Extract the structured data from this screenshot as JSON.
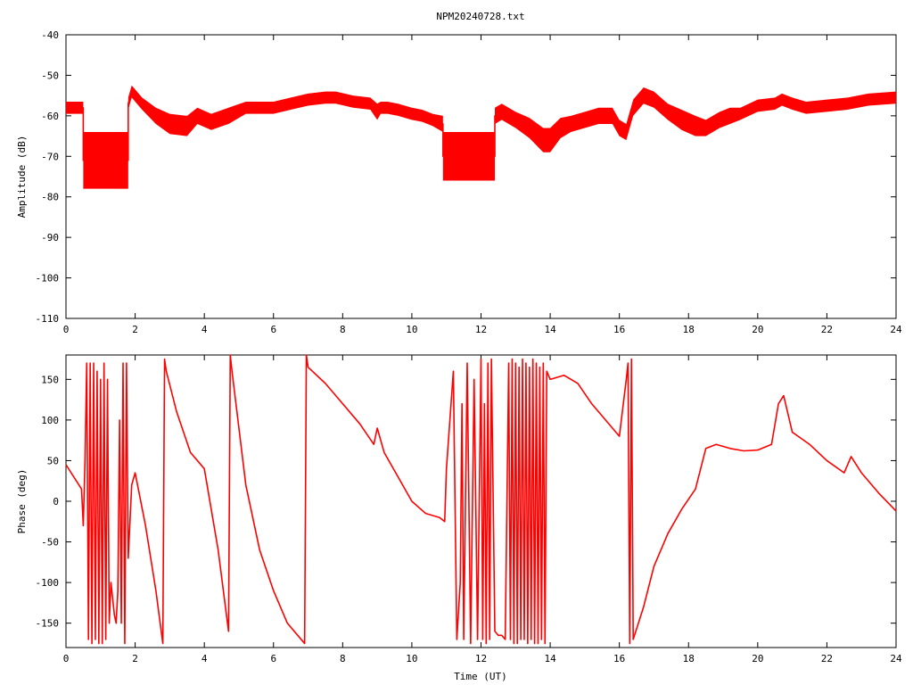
{
  "title": "NPM20240728.txt",
  "xlabel": "Time (UT)",
  "trace_color": "#ff0000",
  "chart_data": [
    {
      "type": "line",
      "ylabel": "Amplitude (dB)",
      "xlim": [
        0,
        24
      ],
      "ylim": [
        -110,
        -40
      ],
      "xticks": [
        0,
        2,
        4,
        6,
        8,
        10,
        12,
        14,
        16,
        18,
        20,
        22,
        24
      ],
      "yticks": [
        -40,
        -50,
        -60,
        -70,
        -80,
        -90,
        -100,
        -110
      ],
      "grid": false,
      "series": [
        {
          "x": [
            0,
            0.5,
            0.5,
            0.8,
            1.2,
            1.8,
            1.8,
            1.9,
            2.2,
            2.6,
            3.0,
            3.5,
            3.8,
            4.2,
            4.7,
            5.2,
            5.6,
            6.0,
            6.5,
            7.0,
            7.5,
            7.8,
            8.3,
            8.8,
            9.0,
            9.1,
            9.3,
            9.6,
            10.0,
            10.3,
            10.6,
            10.9,
            10.9,
            11.3,
            11.8,
            12.4,
            12.4,
            12.6,
            13.0,
            13.4,
            13.8,
            14.0,
            14.3,
            14.6,
            15.0,
            15.4,
            15.8,
            16.0,
            16.2,
            16.4,
            16.7,
            17.0,
            17.4,
            17.8,
            18.2,
            18.5,
            18.9,
            19.2,
            19.5,
            20.0,
            20.5,
            20.7,
            21.0,
            21.4,
            22.0,
            22.6,
            23.2,
            24.0
          ],
          "y": [
            -58,
            -58,
            -71,
            -71,
            -71,
            -71,
            -57,
            -54,
            -57,
            -60,
            -62,
            -62.5,
            -60,
            -61.5,
            -60,
            -58,
            -58,
            -58,
            -57,
            -56,
            -55.5,
            -55.5,
            -56.5,
            -57,
            -59,
            -58,
            -58,
            -58.5,
            -59.5,
            -60,
            -61,
            -62,
            -70,
            -70,
            -70,
            -70,
            -60,
            -59,
            -61,
            -63,
            -66,
            -66,
            -63,
            -62,
            -61,
            -60,
            -60,
            -63,
            -64,
            -58,
            -55,
            -56,
            -59,
            -61,
            -62.5,
            -63,
            -61,
            -60,
            -59.5,
            -57.5,
            -57,
            -56,
            -57,
            -58,
            -57.5,
            -57,
            -56,
            -55.5
          ],
          "band": [
            1.5,
            1.5,
            7,
            7,
            7,
            7,
            1.5,
            1.5,
            1.5,
            2,
            2.5,
            2.5,
            2,
            2,
            2,
            1.5,
            1.5,
            1.5,
            1.5,
            1.5,
            1.5,
            1.5,
            1.5,
            1.5,
            2,
            1.5,
            1.5,
            1.5,
            1.5,
            1.5,
            1.5,
            2,
            6,
            6,
            6,
            6,
            2,
            2,
            2,
            2.5,
            3,
            3,
            2.5,
            2,
            2,
            2,
            2,
            2,
            2,
            2,
            2,
            2,
            2,
            2.5,
            2.5,
            2,
            2,
            2,
            1.5,
            1.5,
            1.5,
            1.5,
            1.5,
            1.5,
            1.5,
            1.5,
            1.5,
            1.5
          ]
        }
      ]
    },
    {
      "type": "line",
      "ylabel": "Phase (deg)",
      "xlim": [
        0,
        24
      ],
      "ylim": [
        -180,
        180
      ],
      "xticks": [
        0,
        2,
        4,
        6,
        8,
        10,
        12,
        14,
        16,
        18,
        20,
        22,
        24
      ],
      "yticks": [
        150,
        100,
        50,
        0,
        -50,
        -100,
        -150
      ],
      "grid": false,
      "series": [
        {
          "x": [
            0,
            0.3,
            0.45,
            0.5,
            0.55,
            0.6,
            0.65,
            0.7,
            0.75,
            0.8,
            0.85,
            0.9,
            0.95,
            1.0,
            1.05,
            1.1,
            1.15,
            1.2,
            1.25,
            1.3,
            1.35,
            1.4,
            1.45,
            1.5,
            1.55,
            1.6,
            1.65,
            1.7,
            1.75,
            1.8,
            1.9,
            2.0,
            2.3,
            2.6,
            2.8,
            2.85,
            2.9,
            3.2,
            3.6,
            4.0,
            4.4,
            4.7,
            4.75,
            4.8,
            5.2,
            5.6,
            6.0,
            6.4,
            6.9,
            6.95,
            7.0,
            7.5,
            8.0,
            8.5,
            8.9,
            9.0,
            9.2,
            9.6,
            10.0,
            10.4,
            10.8,
            10.95,
            11.0,
            11.1,
            11.2,
            11.3,
            11.4,
            11.45,
            11.5,
            11.6,
            11.7,
            11.8,
            11.9,
            12.0,
            12.05,
            12.1,
            12.15,
            12.2,
            12.25,
            12.3,
            12.4,
            12.5,
            12.6,
            12.7,
            12.8,
            12.85,
            12.9,
            12.95,
            13.0,
            13.05,
            13.1,
            13.15,
            13.2,
            13.25,
            13.3,
            13.35,
            13.4,
            13.45,
            13.5,
            13.55,
            13.6,
            13.65,
            13.7,
            13.75,
            13.8,
            13.85,
            13.9,
            14.0,
            14.4,
            14.8,
            15.2,
            15.6,
            16.0,
            16.2,
            16.25,
            16.3,
            16.35,
            16.4,
            16.7,
            17.0,
            17.4,
            17.8,
            18.2,
            18.5,
            18.8,
            19.2,
            19.6,
            20.0,
            20.4,
            20.6,
            20.75,
            21.0,
            21.5,
            22.0,
            22.5,
            22.7,
            23.0,
            23.5,
            24.0
          ],
          "y": [
            45,
            25,
            15,
            -30,
            50,
            170,
            -170,
            170,
            -175,
            170,
            -170,
            160,
            -175,
            150,
            -175,
            170,
            -170,
            150,
            -150,
            -100,
            -120,
            -140,
            -150,
            -110,
            100,
            -150,
            170,
            -175,
            170,
            -70,
            20,
            35,
            -30,
            -110,
            -175,
            175,
            160,
            110,
            60,
            40,
            -60,
            -160,
            180,
            160,
            20,
            -60,
            -110,
            -150,
            -175,
            180,
            165,
            145,
            120,
            95,
            70,
            90,
            60,
            30,
            0,
            -15,
            -20,
            -25,
            40,
            100,
            160,
            -170,
            -100,
            120,
            -170,
            170,
            -175,
            150,
            -170,
            175,
            -170,
            120,
            -175,
            170,
            -170,
            175,
            -160,
            -165,
            -165,
            -170,
            170,
            -170,
            175,
            -175,
            170,
            -175,
            165,
            -170,
            175,
            -170,
            170,
            -175,
            165,
            -170,
            175,
            -175,
            170,
            -175,
            165,
            -170,
            170,
            -175,
            160,
            150,
            155,
            145,
            120,
            100,
            80,
            150,
            170,
            -175,
            175,
            -170,
            -130,
            -80,
            -40,
            -10,
            15,
            65,
            70,
            65,
            62,
            63,
            70,
            120,
            130,
            85,
            70,
            50,
            35,
            55,
            35,
            10,
            -12
          ]
        }
      ]
    }
  ]
}
